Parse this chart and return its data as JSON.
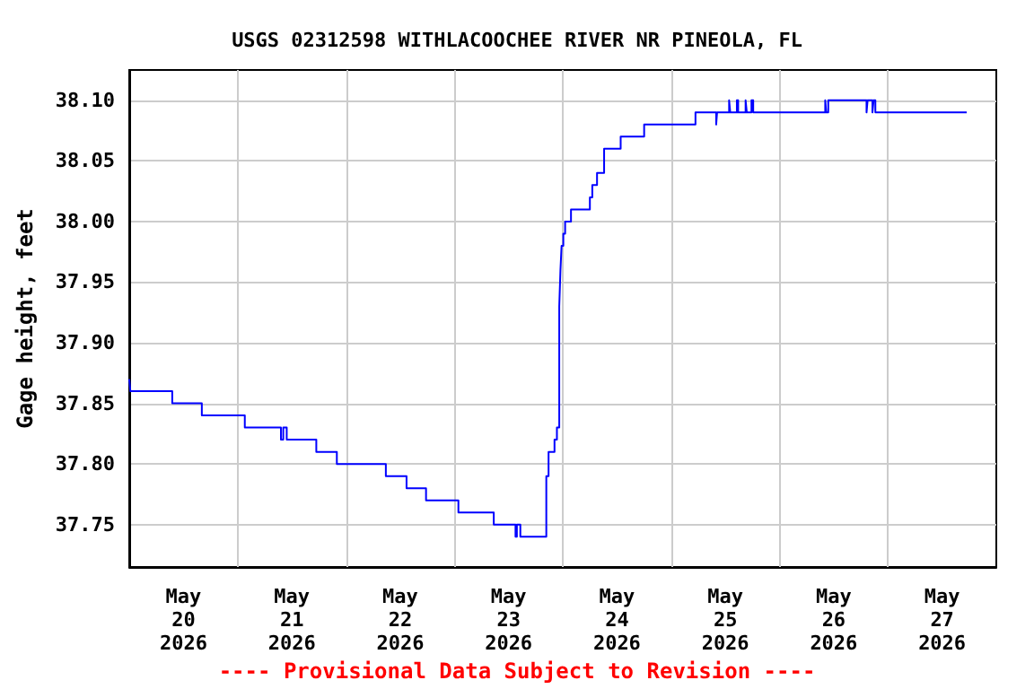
{
  "chart_data": {
    "type": "step",
    "title": "USGS 02312598 WITHLACOOCHEE RIVER NR PINEOLA, FL",
    "ylabel": "Gage height, feet",
    "annotations": [
      "---- Provisional Data Subject to Revision ----"
    ],
    "x": [
      "2026-05-20T00:00",
      "2026-05-20T00:15",
      "2026-05-20T09:31",
      "2026-05-20T16:04",
      "2026-05-21T01:35",
      "2026-05-21T09:35",
      "2026-05-21T10:06",
      "2026-05-21T10:52",
      "2026-05-21T17:25",
      "2026-05-21T21:58",
      "2026-05-22T08:49",
      "2026-05-22T13:24",
      "2026-05-22T17:43",
      "2026-05-23T00:53",
      "2026-05-23T08:43",
      "2026-05-23T13:32",
      "2026-05-23T13:50",
      "2026-05-23T14:36",
      "2026-05-23T20:21",
      "2026-05-23T20:51",
      "2026-05-23T22:10",
      "2026-05-23T22:42",
      "2026-05-23T23:13",
      "2026-05-23T23:29",
      "2026-05-23T23:44",
      "2026-05-24T00:07",
      "2026-05-24T00:31",
      "2026-05-24T01:49",
      "2026-05-24T06:00",
      "2026-05-24T06:32",
      "2026-05-24T07:35",
      "2026-05-24T09:09",
      "2026-05-24T12:49",
      "2026-05-24T18:01",
      "2026-05-25T05:23",
      "2026-05-25T09:58",
      "2026-05-25T10:10",
      "2026-05-25T12:50",
      "2026-05-25T13:05",
      "2026-05-25T14:33",
      "2026-05-25T14:50",
      "2026-05-25T16:29",
      "2026-05-25T16:45",
      "2026-05-25T17:47",
      "2026-05-25T18:10",
      "2026-05-26T10:07",
      "2026-05-26T10:20",
      "2026-05-26T10:47",
      "2026-05-26T19:16",
      "2026-05-26T19:30",
      "2026-05-26T20:34",
      "2026-05-26T20:50",
      "2026-05-26T21:13",
      "2026-05-27T17:27"
    ],
    "series": [
      {
        "color": "#0000ff",
        "values": [
          37.87,
          37.86,
          37.85,
          37.84,
          37.83,
          37.82,
          37.83,
          37.82,
          37.81,
          37.8,
          37.79,
          37.78,
          37.77,
          37.76,
          37.75,
          37.74,
          37.75,
          37.74,
          37.79,
          37.81,
          37.82,
          37.83,
          37.93,
          37.96,
          37.98,
          37.99,
          38.0,
          38.01,
          38.02,
          38.03,
          38.04,
          38.06,
          38.07,
          38.08,
          38.09,
          38.08,
          38.09,
          38.1,
          38.09,
          38.1,
          38.09,
          38.1,
          38.09,
          38.1,
          38.09,
          38.1,
          38.09,
          38.1,
          38.09,
          38.1,
          38.09,
          38.1,
          38.09,
          38.09
        ]
      }
    ],
    "xlim": [
      "2026-05-20T00:00",
      "2026-05-28T00:00"
    ],
    "xticks": [
      {
        "value": "2026-05-20T12:00",
        "label": "May\n20\n2026"
      },
      {
        "value": "2026-05-21T12:00",
        "label": "May\n21\n2026"
      },
      {
        "value": "2026-05-22T12:00",
        "label": "May\n22\n2026"
      },
      {
        "value": "2026-05-23T12:00",
        "label": "May\n23\n2026"
      },
      {
        "value": "2026-05-24T12:00",
        "label": "May\n24\n2026"
      },
      {
        "value": "2026-05-25T12:00",
        "label": "May\n25\n2026"
      },
      {
        "value": "2026-05-26T12:00",
        "label": "May\n26\n2026"
      },
      {
        "value": "2026-05-27T12:00",
        "label": "May\n27\n2026"
      },
      {
        "value": "2026-05-21T00:00",
        "label": null
      },
      {
        "value": "2026-05-22T00:00",
        "label": null
      },
      {
        "value": "2026-05-23T00:00",
        "label": null
      },
      {
        "value": "2026-05-24T00:00",
        "label": null
      },
      {
        "value": "2026-05-25T00:00",
        "label": null
      },
      {
        "value": "2026-05-26T00:00",
        "label": null
      },
      {
        "value": "2026-05-27T00:00",
        "label": null
      }
    ],
    "ylim": [
      37.715,
      38.125
    ],
    "yticks": [
      {
        "value": 37.75,
        "label": "37.75"
      },
      {
        "value": 37.8,
        "label": "37.80"
      },
      {
        "value": 37.85,
        "label": "37.85"
      },
      {
        "value": 37.9,
        "label": "37.90"
      },
      {
        "value": 37.95,
        "label": "37.95"
      },
      {
        "value": 38.0,
        "label": "38.00"
      },
      {
        "value": 38.05,
        "label": "38.05"
      },
      {
        "value": 38.1,
        "label": "38.10"
      }
    ],
    "grid": true,
    "marker": "none",
    "line_style": "solid"
  }
}
